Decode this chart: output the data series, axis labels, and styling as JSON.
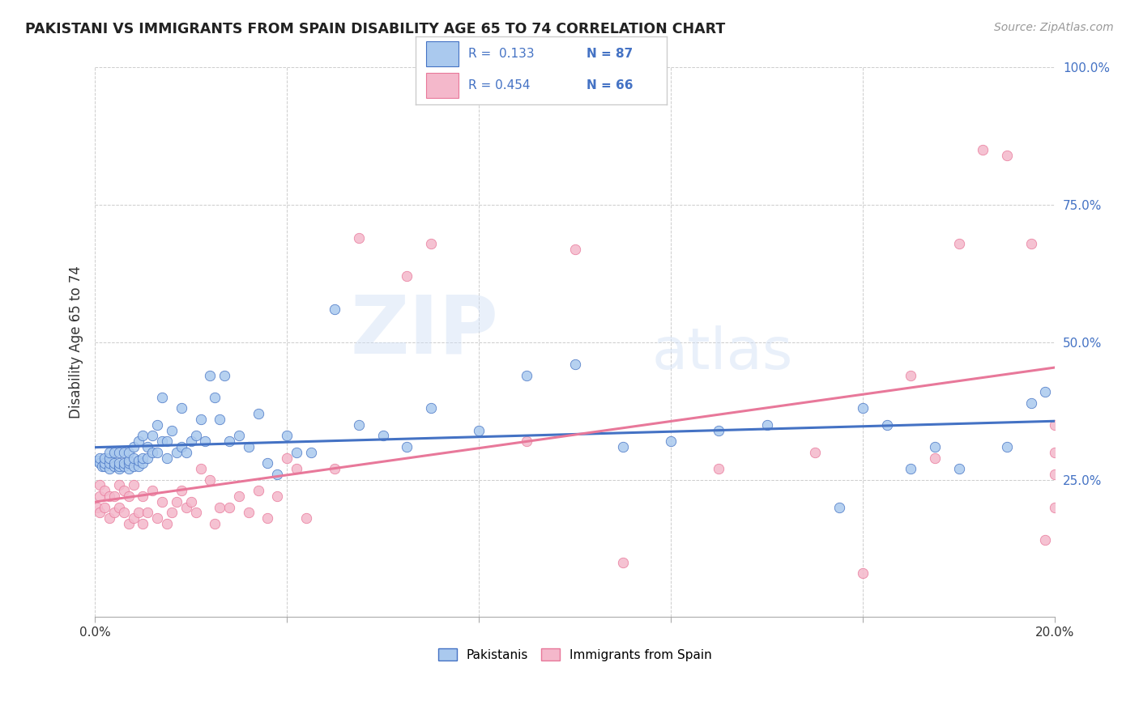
{
  "title": "PAKISTANI VS IMMIGRANTS FROM SPAIN DISABILITY AGE 65 TO 74 CORRELATION CHART",
  "source": "Source: ZipAtlas.com",
  "ylabel": "Disability Age 65 to 74",
  "xlim": [
    0.0,
    0.2
  ],
  "ylim": [
    0.0,
    1.0
  ],
  "blue_R": 0.133,
  "blue_N": 87,
  "pink_R": 0.454,
  "pink_N": 66,
  "blue_color": "#aac9ee",
  "pink_color": "#f4b8cb",
  "blue_line_color": "#4472c4",
  "pink_line_color": "#e8789a",
  "legend_label_blue": "Pakistanis",
  "legend_label_pink": "Immigrants from Spain",
  "watermark_zip": "ZIP",
  "watermark_atlas": "atlas",
  "legend_text_color": "#4472c4",
  "blue_x": [
    0.0005,
    0.001,
    0.001,
    0.0015,
    0.002,
    0.002,
    0.002,
    0.003,
    0.003,
    0.003,
    0.003,
    0.004,
    0.004,
    0.004,
    0.005,
    0.005,
    0.005,
    0.005,
    0.006,
    0.006,
    0.006,
    0.007,
    0.007,
    0.007,
    0.007,
    0.008,
    0.008,
    0.008,
    0.009,
    0.009,
    0.009,
    0.01,
    0.01,
    0.01,
    0.011,
    0.011,
    0.012,
    0.012,
    0.013,
    0.013,
    0.014,
    0.014,
    0.015,
    0.015,
    0.016,
    0.017,
    0.018,
    0.018,
    0.019,
    0.02,
    0.021,
    0.022,
    0.023,
    0.024,
    0.025,
    0.026,
    0.027,
    0.028,
    0.03,
    0.032,
    0.034,
    0.036,
    0.038,
    0.04,
    0.042,
    0.045,
    0.05,
    0.055,
    0.06,
    0.065,
    0.07,
    0.08,
    0.09,
    0.1,
    0.11,
    0.12,
    0.13,
    0.14,
    0.155,
    0.16,
    0.165,
    0.17,
    0.175,
    0.18,
    0.19,
    0.195,
    0.198
  ],
  "blue_y": [
    0.285,
    0.28,
    0.29,
    0.275,
    0.275,
    0.28,
    0.29,
    0.27,
    0.28,
    0.29,
    0.3,
    0.275,
    0.28,
    0.3,
    0.27,
    0.275,
    0.28,
    0.3,
    0.275,
    0.28,
    0.3,
    0.27,
    0.28,
    0.285,
    0.3,
    0.275,
    0.29,
    0.31,
    0.275,
    0.285,
    0.32,
    0.28,
    0.29,
    0.33,
    0.29,
    0.31,
    0.3,
    0.33,
    0.3,
    0.35,
    0.32,
    0.4,
    0.29,
    0.32,
    0.34,
    0.3,
    0.31,
    0.38,
    0.3,
    0.32,
    0.33,
    0.36,
    0.32,
    0.44,
    0.4,
    0.36,
    0.44,
    0.32,
    0.33,
    0.31,
    0.37,
    0.28,
    0.26,
    0.33,
    0.3,
    0.3,
    0.56,
    0.35,
    0.33,
    0.31,
    0.38,
    0.34,
    0.44,
    0.46,
    0.31,
    0.32,
    0.34,
    0.35,
    0.2,
    0.38,
    0.35,
    0.27,
    0.31,
    0.27,
    0.31,
    0.39,
    0.41
  ],
  "pink_x": [
    0.0005,
    0.001,
    0.001,
    0.001,
    0.002,
    0.002,
    0.003,
    0.003,
    0.004,
    0.004,
    0.005,
    0.005,
    0.006,
    0.006,
    0.007,
    0.007,
    0.008,
    0.008,
    0.009,
    0.01,
    0.01,
    0.011,
    0.012,
    0.013,
    0.014,
    0.015,
    0.016,
    0.017,
    0.018,
    0.019,
    0.02,
    0.021,
    0.022,
    0.024,
    0.025,
    0.026,
    0.028,
    0.03,
    0.032,
    0.034,
    0.036,
    0.038,
    0.04,
    0.042,
    0.044,
    0.05,
    0.055,
    0.065,
    0.07,
    0.09,
    0.1,
    0.11,
    0.13,
    0.15,
    0.16,
    0.17,
    0.175,
    0.18,
    0.185,
    0.19,
    0.195,
    0.198,
    0.2,
    0.2,
    0.2,
    0.2
  ],
  "pink_y": [
    0.2,
    0.19,
    0.22,
    0.24,
    0.2,
    0.23,
    0.18,
    0.22,
    0.19,
    0.22,
    0.2,
    0.24,
    0.19,
    0.23,
    0.17,
    0.22,
    0.18,
    0.24,
    0.19,
    0.17,
    0.22,
    0.19,
    0.23,
    0.18,
    0.21,
    0.17,
    0.19,
    0.21,
    0.23,
    0.2,
    0.21,
    0.19,
    0.27,
    0.25,
    0.17,
    0.2,
    0.2,
    0.22,
    0.19,
    0.23,
    0.18,
    0.22,
    0.29,
    0.27,
    0.18,
    0.27,
    0.69,
    0.62,
    0.68,
    0.32,
    0.67,
    0.1,
    0.27,
    0.3,
    0.08,
    0.44,
    0.29,
    0.68,
    0.85,
    0.84,
    0.68,
    0.14,
    0.2,
    0.26,
    0.35,
    0.3
  ]
}
